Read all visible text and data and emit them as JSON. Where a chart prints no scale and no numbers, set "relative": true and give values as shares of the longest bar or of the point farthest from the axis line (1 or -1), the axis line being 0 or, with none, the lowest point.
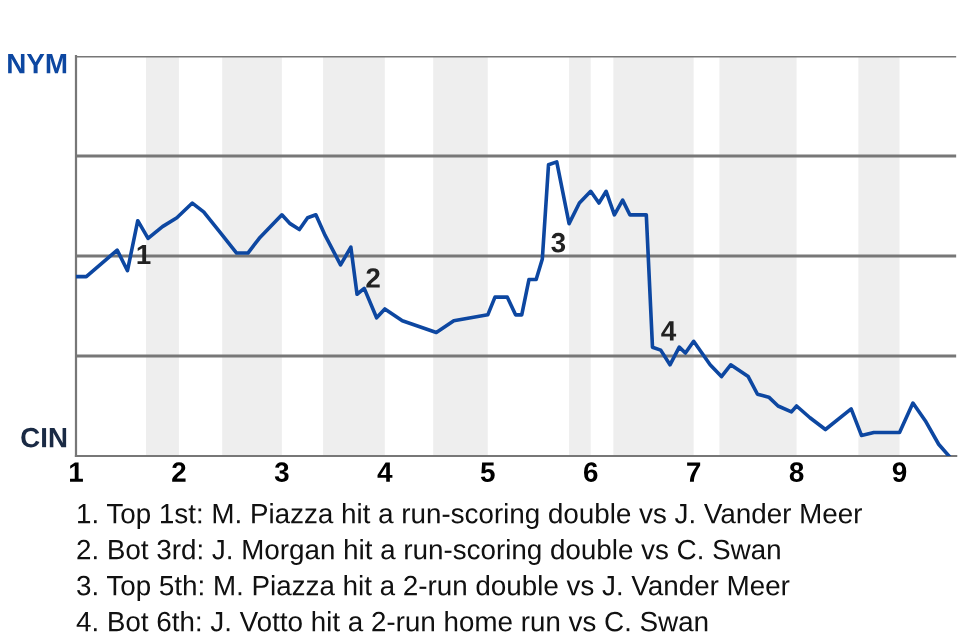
{
  "chart_data": {
    "type": "line",
    "relative": true,
    "series": [
      {
        "color": "#0d47a1",
        "x": [
          1,
          1.1,
          1.4,
          1.5,
          1.6,
          1.7,
          1.84,
          1.98,
          2.13,
          2.24,
          2.4,
          2.56,
          2.67,
          2.78,
          2.89,
          3,
          3.08,
          3.17,
          3.25,
          3.33,
          3.42,
          3.57,
          3.67,
          3.73,
          3.8,
          3.92,
          4,
          4.17,
          4.5,
          4.67,
          5,
          5.07,
          5.19,
          5.23,
          5.27,
          5.33,
          5.4,
          5.47,
          5.53,
          5.59,
          5.67,
          5.79,
          5.89,
          6,
          6.08,
          6.15,
          6.23,
          6.31,
          6.38,
          6.54,
          6.6,
          6.68,
          6.77,
          6.86,
          6.92,
          7,
          7.16,
          7.27,
          7.36,
          7.53,
          7.62,
          7.73,
          7.82,
          7.95,
          8,
          8.13,
          8.28,
          8.53,
          8.63,
          8.75,
          9,
          9.13,
          9.25,
          9.38,
          9.48
        ],
        "values": [
          0.61,
          0.61,
          0.7,
          0.63,
          0.8,
          0.74,
          0.78,
          0.81,
          0.86,
          0.83,
          0.76,
          0.69,
          0.69,
          0.74,
          0.78,
          0.82,
          0.79,
          0.77,
          0.81,
          0.82,
          0.75,
          0.65,
          0.71,
          0.55,
          0.57,
          0.47,
          0.5,
          0.46,
          0.42,
          0.46,
          0.48,
          0.54,
          0.54,
          0.51,
          0.48,
          0.48,
          0.6,
          0.6,
          0.67,
          0.99,
          1,
          0.79,
          0.86,
          0.9,
          0.86,
          0.9,
          0.82,
          0.87,
          0.82,
          0.82,
          0.37,
          0.36,
          0.31,
          0.37,
          0.35,
          0.39,
          0.31,
          0.27,
          0.31,
          0.27,
          0.21,
          0.2,
          0.17,
          0.15,
          0.17,
          0.13,
          0.09,
          0.16,
          0.07,
          0.08,
          0.08,
          0.18,
          0.12,
          0.04,
          0
        ]
      }
    ],
    "xlim": [
      1,
      9.55
    ],
    "xticks": [
      1,
      2,
      3,
      4,
      5,
      6,
      7,
      8,
      9
    ],
    "ref_lines": [
      {
        "axis": "y",
        "value": 0.34,
        "color": "#777777"
      },
      {
        "axis": "y",
        "value": 0.68,
        "color": "#777777"
      },
      {
        "axis": "y",
        "value": 1.02,
        "color": "#777777"
      },
      {
        "axis": "y",
        "value": 1.36,
        "color": "#777777"
      }
    ],
    "bands": [
      {
        "axis": "x",
        "from": 1.68,
        "to": 2,
        "color": "#eeeeee"
      },
      {
        "axis": "x",
        "from": 2.42,
        "to": 3,
        "color": "#eeeeee"
      },
      {
        "axis": "x",
        "from": 3.4,
        "to": 4,
        "color": "#eeeeee"
      },
      {
        "axis": "x",
        "from": 4.47,
        "to": 5,
        "color": "#eeeeee"
      },
      {
        "axis": "x",
        "from": 5.79,
        "to": 6,
        "color": "#eeeeee"
      },
      {
        "axis": "x",
        "from": 6.22,
        "to": 7,
        "color": "#eeeeee"
      },
      {
        "axis": "x",
        "from": 7.25,
        "to": 8,
        "color": "#eeeeee"
      },
      {
        "axis": "x",
        "from": 8.6,
        "to": 9,
        "color": "#eeeeee"
      }
    ],
    "annotations": [
      "NYM",
      "CIN",
      {
        "text": "1",
        "x": 1.5,
        "y": 0.63
      },
      {
        "text": "2",
        "x": 3.73,
        "y": 0.55
      },
      {
        "text": "3",
        "x": 5.53,
        "y": 0.67
      },
      {
        "text": "4",
        "x": 6.6,
        "y": 0.37
      },
      "1. Top 1st: M. Piazza hit a run-scoring double vs J. Vander Meer",
      "2. Bot 3rd: J. Morgan hit a run-scoring double vs C. Swan",
      "3. Top 5th: M. Piazza hit a 2-run double vs J. Vander Meer",
      "4. Bot 6th: J. Votto hit a 2-run home run vs C. Swan"
    ]
  }
}
